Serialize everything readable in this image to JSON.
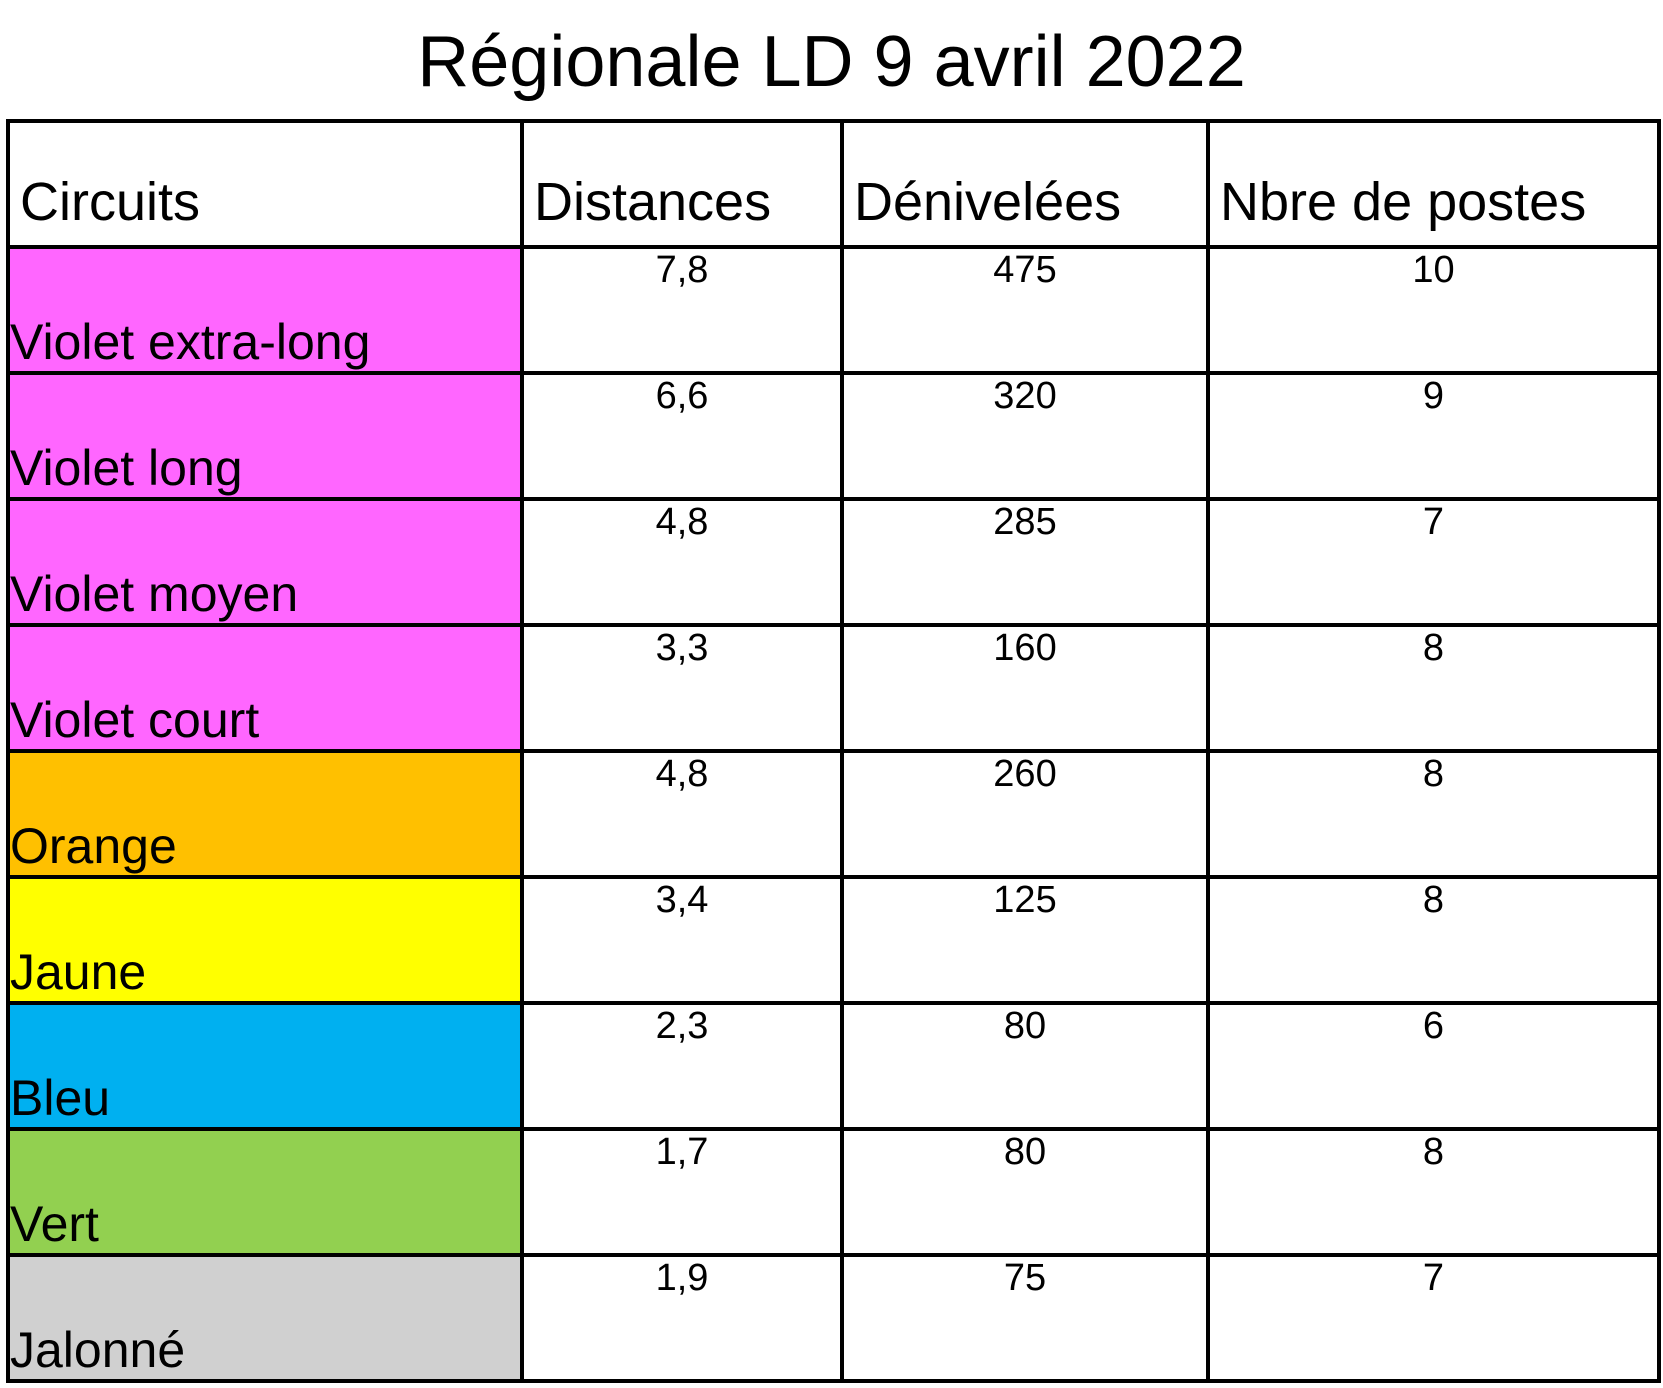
{
  "title": "Régionale LD 9 avril 2022",
  "headers": {
    "circuits": "Circuits",
    "distances": "Distances",
    "denivelees": "Dénivelées",
    "postes": "Nbre de postes"
  },
  "rows": [
    {
      "circuit": "Violet extra-long",
      "color": "#ff66ff",
      "distance": "7,8",
      "denivelee": "475",
      "postes": "10"
    },
    {
      "circuit": "Violet long",
      "color": "#ff66ff",
      "distance": "6,6",
      "denivelee": "320",
      "postes": "9"
    },
    {
      "circuit": "Violet moyen",
      "color": "#ff66ff",
      "distance": "4,8",
      "denivelee": "285",
      "postes": "7"
    },
    {
      "circuit": "Violet court",
      "color": "#ff66ff",
      "distance": "3,3",
      "denivelee": "160",
      "postes": "8"
    },
    {
      "circuit": "Orange",
      "color": "#ffc000",
      "distance": "4,8",
      "denivelee": "260",
      "postes": "8"
    },
    {
      "circuit": "Jaune",
      "color": "#ffff00",
      "distance": "3,4",
      "denivelee": "125",
      "postes": "8"
    },
    {
      "circuit": "Bleu",
      "color": "#00b0f0",
      "distance": "2,3",
      "denivelee": "80",
      "postes": "6"
    },
    {
      "circuit": "Vert",
      "color": "#92d050",
      "distance": "1,7",
      "denivelee": "80",
      "postes": "8"
    },
    {
      "circuit": "Jalonné",
      "color": "#d0d0d0",
      "distance": "1,9",
      "denivelee": "75",
      "postes": "7"
    }
  ]
}
